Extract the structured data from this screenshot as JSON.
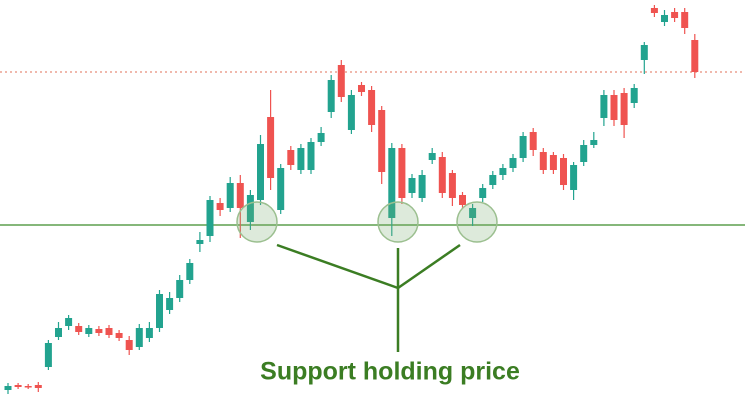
{
  "chart_data": {
    "type": "candlestick",
    "annotation": "Support holding price",
    "up_color": "#22a38f",
    "down_color": "#ef5350",
    "support_level": 177,
    "support_color": "#3c8c2a",
    "resistance_level": 330,
    "resistance_color": "#e0705a",
    "ylim": [
      0,
      402
    ],
    "open": [
      12,
      17,
      16,
      17,
      35,
      65,
      76,
      76,
      68,
      73,
      74,
      69,
      62,
      55,
      64,
      74,
      92,
      104,
      122,
      158,
      166,
      199,
      194,
      219,
      180,
      202,
      285,
      192,
      252,
      232,
      232,
      260,
      290,
      337,
      272,
      317,
      312,
      292,
      184,
      254,
      209,
      204,
      242,
      245,
      229,
      207,
      184,
      204,
      217,
      227,
      234,
      244,
      270,
      250,
      247,
      244,
      212,
      240,
      257,
      284,
      307,
      309,
      299,
      342,
      394,
      380,
      390,
      390,
      362
    ],
    "high": [
      19,
      19,
      18,
      20,
      62,
      80,
      87,
      79,
      77,
      76,
      77,
      72,
      66,
      78,
      80,
      112,
      110,
      127,
      143,
      170,
      206,
      204,
      225,
      227,
      212,
      267,
      312,
      238,
      256,
      258,
      264,
      275,
      327,
      342,
      312,
      320,
      316,
      296,
      259,
      258,
      228,
      232,
      254,
      250,
      232,
      210,
      198,
      218,
      231,
      238,
      248,
      270,
      274,
      254,
      250,
      248,
      240,
      262,
      270,
      312,
      312,
      314,
      318,
      360,
      397,
      392,
      394,
      394,
      368
    ],
    "low": [
      8,
      13,
      13,
      10,
      32,
      62,
      72,
      67,
      65,
      66,
      64,
      61,
      47,
      52,
      60,
      70,
      88,
      100,
      118,
      150,
      160,
      186,
      190,
      164,
      172,
      197,
      212,
      188,
      232,
      228,
      228,
      256,
      284,
      300,
      268,
      306,
      270,
      218,
      166,
      198,
      204,
      200,
      238,
      204,
      196,
      193,
      176,
      200,
      213,
      222,
      230,
      240,
      246,
      228,
      228,
      212,
      202,
      236,
      254,
      276,
      276,
      264,
      294,
      328,
      385,
      376,
      380,
      368,
      324
    ],
    "close": [
      16,
      15,
      15,
      14,
      59,
      74,
      84,
      70,
      74,
      69,
      67,
      64,
      52,
      74,
      74,
      108,
      104,
      122,
      139,
      162,
      202,
      192,
      219,
      194,
      207,
      258,
      224,
      234,
      237,
      254,
      260,
      269,
      322,
      305,
      307,
      310,
      277,
      230,
      254,
      204,
      224,
      227,
      249,
      209,
      204,
      197,
      194,
      214,
      227,
      234,
      244,
      266,
      252,
      232,
      232,
      217,
      237,
      257,
      262,
      307,
      282,
      277,
      314,
      357,
      389,
      387,
      384,
      374,
      330
    ]
  }
}
